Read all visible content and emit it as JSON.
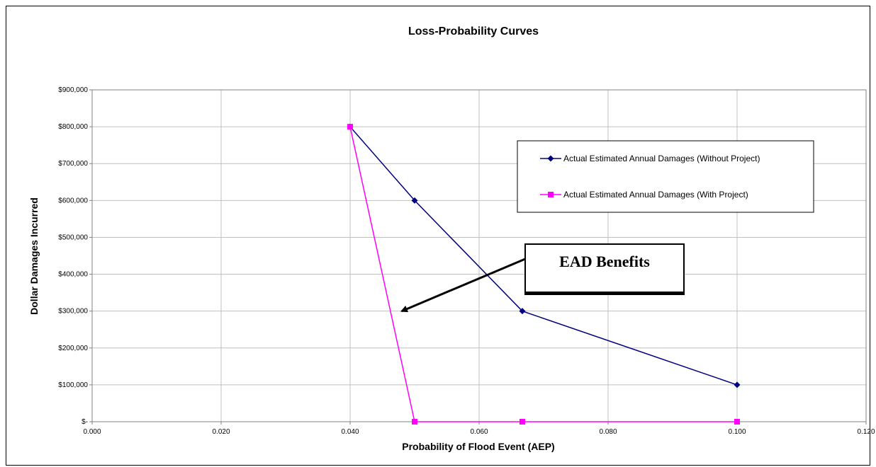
{
  "chart_data": {
    "type": "line",
    "title": "Loss-Probability Curves",
    "xlabel": "Probability of Flood Event (AEP)",
    "ylabel": "Dollar Damages Incurred",
    "xlim": [
      0,
      0.12
    ],
    "ylim": [
      0,
      900000
    ],
    "x_ticks": [
      0,
      0.02,
      0.04,
      0.06,
      0.08,
      0.1,
      0.12
    ],
    "x_tick_labels": [
      "0.000",
      "0.020",
      "0.040",
      "0.060",
      "0.080",
      "0.100",
      "0.120"
    ],
    "y_ticks": [
      0,
      100000,
      200000,
      300000,
      400000,
      500000,
      600000,
      700000,
      800000,
      900000
    ],
    "y_tick_labels": [
      "$-",
      "$100,000",
      "$200,000",
      "$300,000",
      "$400,000",
      "$500,000",
      "$600,000",
      "$700,000",
      "$800,000",
      "$900,000"
    ],
    "grid": true,
    "legend_position": "top-right",
    "series": [
      {
        "name": "Actual Estimated Annual Damages (Without Project)",
        "color": "#000080",
        "marker": "diamond",
        "x": [
          0.04,
          0.05,
          0.0667,
          0.1
        ],
        "values": [
          800000,
          600000,
          300000,
          100000
        ]
      },
      {
        "name": "Actual Estimated Annual Damages (With Project)",
        "color": "#FF00FF",
        "marker": "square",
        "x": [
          0.04,
          0.05,
          0.0667,
          0.1
        ],
        "values": [
          800000,
          0,
          0,
          0
        ]
      }
    ],
    "annotations": [
      {
        "text": "EAD Benefits",
        "arrow_to": {
          "x": 0.048,
          "y": 300000
        }
      }
    ]
  }
}
